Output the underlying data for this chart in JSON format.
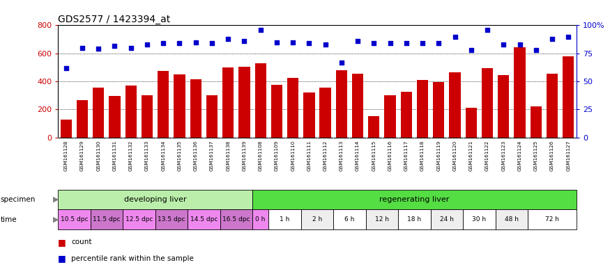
{
  "title": "GDS2577 / 1423394_at",
  "samples": [
    "GSM161128",
    "GSM161129",
    "GSM161130",
    "GSM161131",
    "GSM161132",
    "GSM161133",
    "GSM161134",
    "GSM161135",
    "GSM161136",
    "GSM161137",
    "GSM161138",
    "GSM161139",
    "GSM161108",
    "GSM161109",
    "GSM161110",
    "GSM161111",
    "GSM161112",
    "GSM161113",
    "GSM161114",
    "GSM161115",
    "GSM161116",
    "GSM161117",
    "GSM161118",
    "GSM161119",
    "GSM161120",
    "GSM161121",
    "GSM161122",
    "GSM161123",
    "GSM161124",
    "GSM161125",
    "GSM161126",
    "GSM161127"
  ],
  "counts": [
    128,
    265,
    355,
    298,
    370,
    300,
    473,
    450,
    415,
    300,
    500,
    505,
    530,
    375,
    425,
    320,
    355,
    480,
    455,
    155,
    300,
    327,
    410,
    397,
    467,
    210,
    495,
    445,
    645,
    220,
    455,
    580
  ],
  "percentiles": [
    62,
    80,
    79,
    82,
    80,
    83,
    84,
    84,
    85,
    84,
    88,
    86,
    96,
    85,
    85,
    84,
    83,
    67,
    86,
    84,
    84,
    84,
    84,
    84,
    90,
    78,
    96,
    83,
    83,
    78,
    88,
    90
  ],
  "bar_color": "#cc0000",
  "dot_color": "#0000cc",
  "ylim_left": [
    0,
    800
  ],
  "ylim_right": [
    0,
    100
  ],
  "yticks_left": [
    0,
    200,
    400,
    600,
    800
  ],
  "yticks_right": [
    0,
    25,
    50,
    75,
    100
  ],
  "grid_values": [
    200,
    400,
    600
  ],
  "specimen_groups": [
    {
      "label": "developing liver",
      "start": 0,
      "end": 12,
      "color": "#bbeeaa"
    },
    {
      "label": "regenerating liver",
      "start": 12,
      "end": 32,
      "color": "#55dd44"
    }
  ],
  "time_groups": [
    {
      "label": "10.5 dpc",
      "start": 0,
      "end": 2,
      "color": "#ee88ee"
    },
    {
      "label": "11.5 dpc",
      "start": 2,
      "end": 4,
      "color": "#cc77cc"
    },
    {
      "label": "12.5 dpc",
      "start": 4,
      "end": 6,
      "color": "#ee88ee"
    },
    {
      "label": "13.5 dpc",
      "start": 6,
      "end": 8,
      "color": "#cc77cc"
    },
    {
      "label": "14.5 dpc",
      "start": 8,
      "end": 10,
      "color": "#ee88ee"
    },
    {
      "label": "16.5 dpc",
      "start": 10,
      "end": 12,
      "color": "#cc77cc"
    },
    {
      "label": "0 h",
      "start": 12,
      "end": 13,
      "color": "#ee88ee"
    },
    {
      "label": "1 h",
      "start": 13,
      "end": 15,
      "color": "#ffffff"
    },
    {
      "label": "2 h",
      "start": 15,
      "end": 17,
      "color": "#eeeeee"
    },
    {
      "label": "6 h",
      "start": 17,
      "end": 19,
      "color": "#ffffff"
    },
    {
      "label": "12 h",
      "start": 19,
      "end": 21,
      "color": "#eeeeee"
    },
    {
      "label": "18 h",
      "start": 21,
      "end": 23,
      "color": "#ffffff"
    },
    {
      "label": "24 h",
      "start": 23,
      "end": 25,
      "color": "#eeeeee"
    },
    {
      "label": "30 h",
      "start": 25,
      "end": 27,
      "color": "#ffffff"
    },
    {
      "label": "48 h",
      "start": 27,
      "end": 29,
      "color": "#eeeeee"
    },
    {
      "label": "72 h",
      "start": 29,
      "end": 32,
      "color": "#ffffff"
    }
  ],
  "legend_count_color": "#cc0000",
  "legend_pct_color": "#0000cc",
  "legend_count_label": "count",
  "legend_pct_label": "percentile rank within the sample",
  "specimen_label": "specimen",
  "time_label": "time",
  "tick_bg_color": "#dddddd",
  "ax_facecolor": "#ffffff"
}
